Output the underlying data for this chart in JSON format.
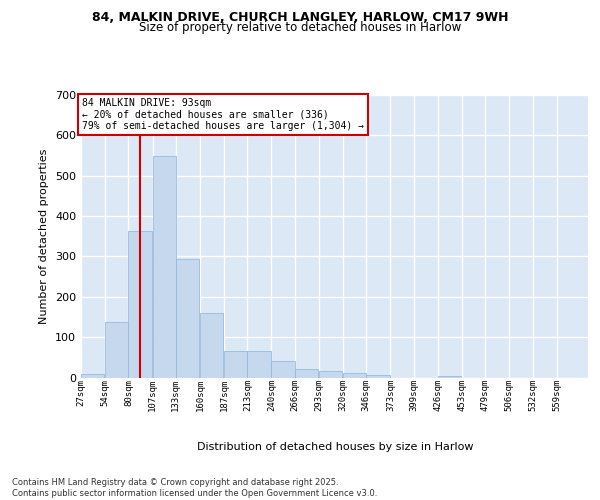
{
  "title1": "84, MALKIN DRIVE, CHURCH LANGLEY, HARLOW, CM17 9WH",
  "title2": "Size of property relative to detached houses in Harlow",
  "xlabel": "Distribution of detached houses by size in Harlow",
  "ylabel": "Number of detached properties",
  "bin_labels": [
    "27sqm",
    "54sqm",
    "80sqm",
    "107sqm",
    "133sqm",
    "160sqm",
    "187sqm",
    "213sqm",
    "240sqm",
    "266sqm",
    "293sqm",
    "320sqm",
    "346sqm",
    "373sqm",
    "399sqm",
    "426sqm",
    "453sqm",
    "479sqm",
    "506sqm",
    "532sqm",
    "559sqm"
  ],
  "bar_values": [
    8,
    137,
    363,
    550,
    293,
    160,
    65,
    65,
    40,
    20,
    15,
    12,
    5,
    0,
    0,
    4,
    0,
    0,
    0,
    0,
    0
  ],
  "bar_color": "#c5d8ee",
  "bar_edge_color": "#8ab4d8",
  "bg_color": "#dce8f5",
  "grid_color": "#ffffff",
  "vline_x": 93,
  "vline_color": "#cc0000",
  "annotation_text": "84 MALKIN DRIVE: 93sqm\n← 20% of detached houses are smaller (336)\n79% of semi-detached houses are larger (1,304) →",
  "annotation_box_edgecolor": "#cc0000",
  "footnote": "Contains HM Land Registry data © Crown copyright and database right 2025.\nContains public sector information licensed under the Open Government Licence v3.0.",
  "ylim": [
    0,
    700
  ],
  "yticks": [
    0,
    100,
    200,
    300,
    400,
    500,
    600,
    700
  ],
  "bin_edges": [
    27,
    54,
    80,
    107,
    133,
    160,
    187,
    213,
    240,
    266,
    293,
    320,
    346,
    373,
    399,
    426,
    453,
    479,
    506,
    532,
    559
  ],
  "bin_width": 27
}
